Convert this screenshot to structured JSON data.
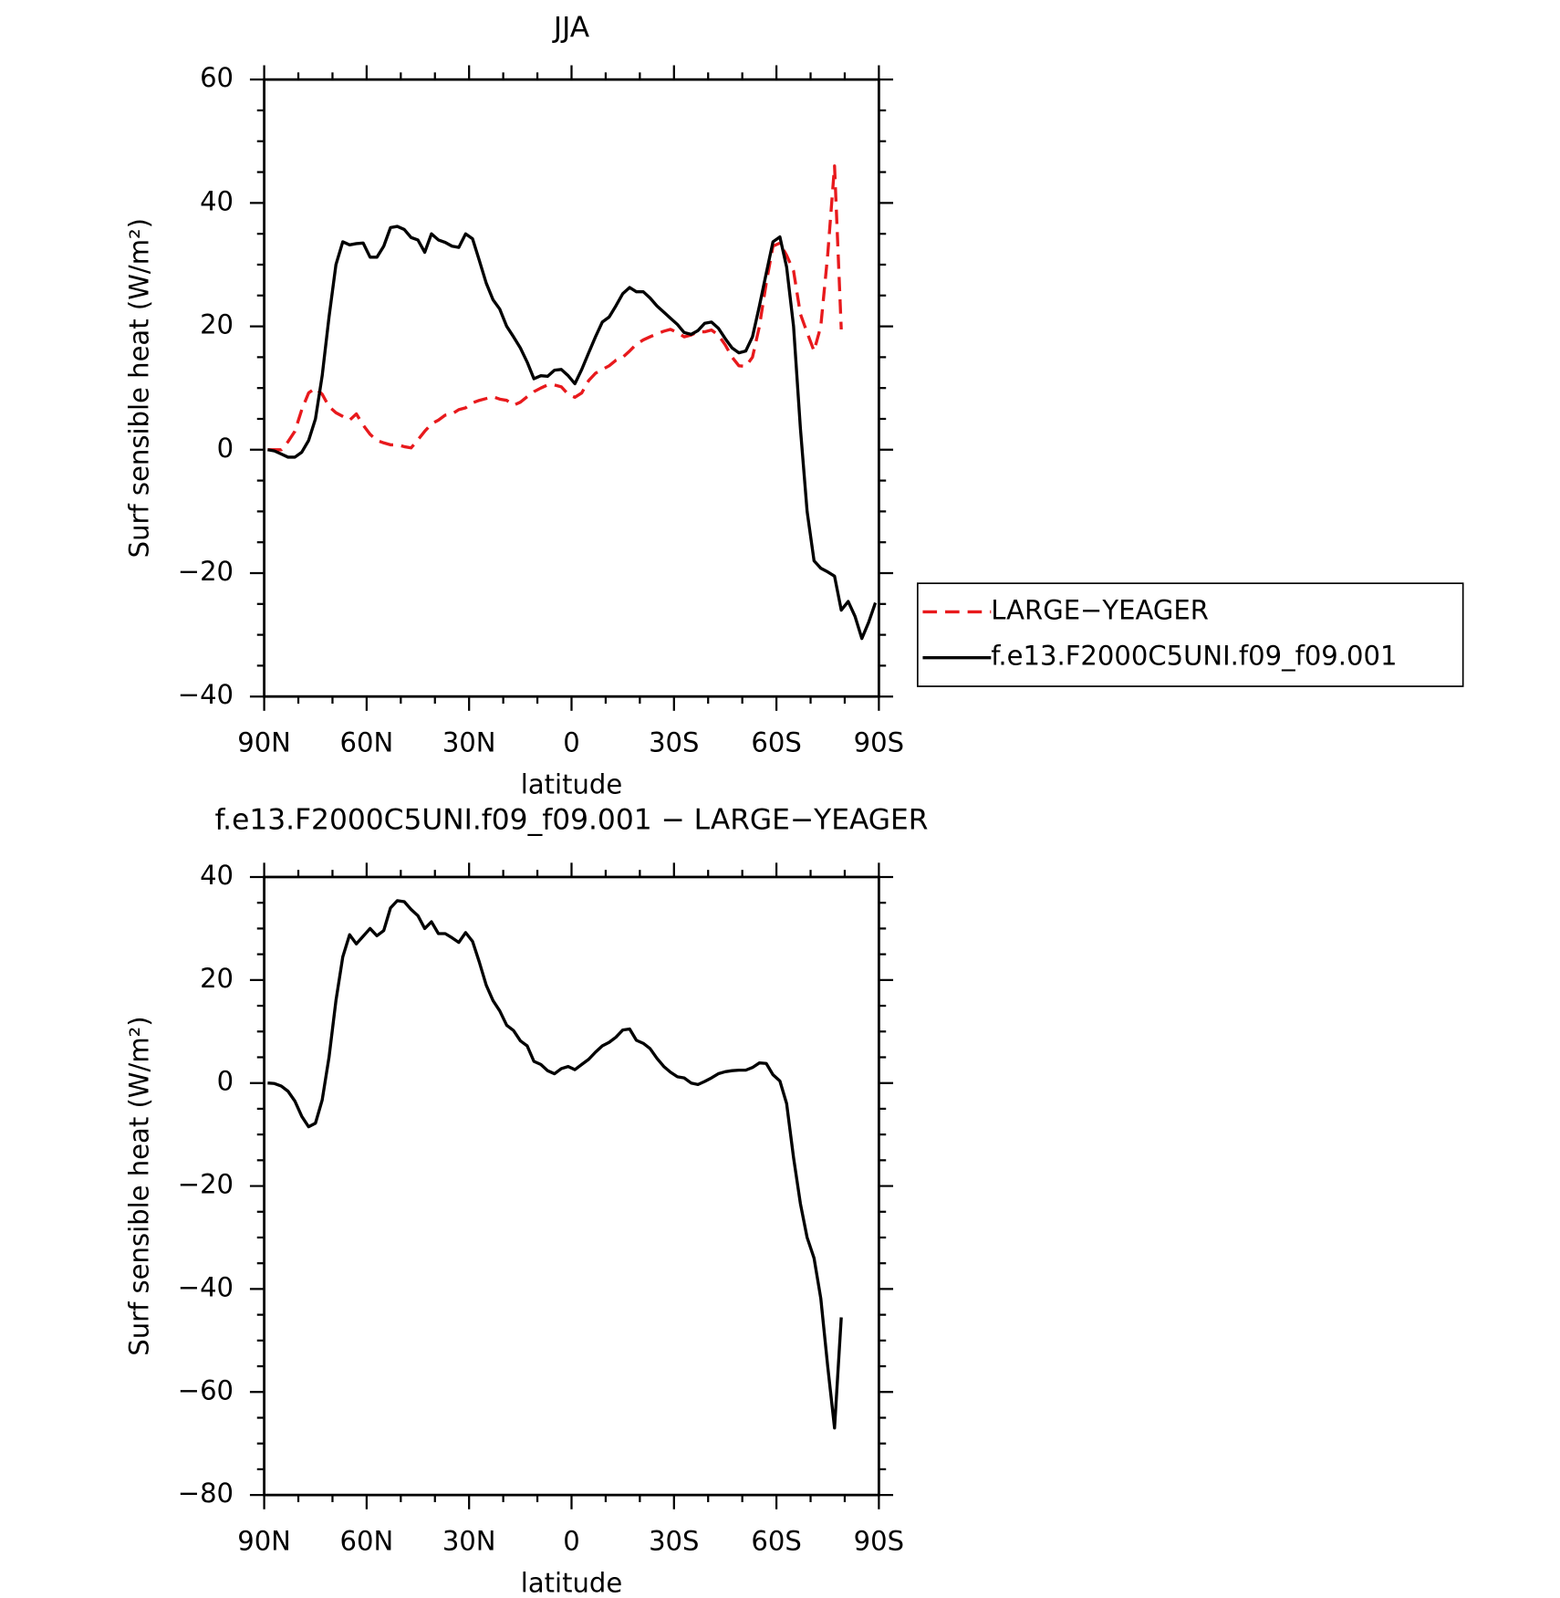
{
  "chart_data": [
    {
      "type": "line",
      "title": "JJA",
      "xlabel": "latitude",
      "ylabel": "Surf sensible heat (W/m²)",
      "legend": "right",
      "x": [
        89,
        87,
        85,
        83,
        81,
        79,
        77,
        75,
        73,
        71,
        69,
        67,
        65,
        63,
        61,
        59,
        57,
        55,
        53,
        51,
        49,
        47,
        45,
        43,
        41,
        39,
        37,
        35,
        33,
        31,
        29,
        27,
        25,
        23,
        21,
        19,
        17,
        15,
        13,
        11,
        9,
        7,
        5,
        3,
        1,
        -1,
        -3,
        -5,
        -7,
        -9,
        -11,
        -13,
        -15,
        -17,
        -19,
        -21,
        -23,
        -25,
        -27,
        -29,
        -31,
        -33,
        -35,
        -37,
        -39,
        -41,
        -43,
        -45,
        -47,
        -49,
        -51,
        -53,
        -55,
        -57,
        -59,
        -61,
        -63,
        -65,
        -67,
        -69,
        -71,
        -73,
        -75,
        -77,
        -79,
        -81,
        -83,
        -85,
        -87,
        -89
      ],
      "series": [
        {
          "name": "LARGE−YEAGER",
          "color": "#e8191c",
          "dash": true,
          "values": [
            0,
            0,
            0,
            1.3,
            3,
            6.5,
            9.2,
            10,
            9,
            7,
            6,
            5.4,
            4.8,
            5.8,
            4,
            2.5,
            1.5,
            1.1,
            0.8,
            0.8,
            0.5,
            0.3,
            1.6,
            3,
            4.2,
            4.8,
            5.6,
            5.8,
            6.5,
            6.8,
            7.6,
            8,
            8.3,
            8.6,
            8.2,
            8,
            7.2,
            7.7,
            8.6,
            9.4,
            10,
            10.5,
            10.5,
            10.2,
            9,
            8.5,
            9.2,
            11.2,
            12.4,
            13,
            13.6,
            14.5,
            15,
            16,
            17.1,
            17.8,
            18.3,
            18.8,
            19.2,
            19.5,
            19,
            18.3,
            18.6,
            19.1,
            19.1,
            19.4,
            18.6,
            17,
            15,
            13.6,
            13.5,
            15,
            20,
            27,
            33,
            33.5,
            31.5,
            29,
            22,
            19,
            16,
            20,
            31.6,
            46,
            19.5,
            null,
            null,
            null,
            null,
            null
          ]
        },
        {
          "name": "f.e13.F2000C5UNI.f09_f09.001",
          "color": "#000000",
          "dash": false,
          "values": [
            0,
            -0.2,
            -0.7,
            -1.2,
            -1.2,
            -0.4,
            1.5,
            5,
            12,
            21.5,
            30,
            33.7,
            33.2,
            33.4,
            33.5,
            31.2,
            31.2,
            33,
            36,
            36.2,
            35.7,
            34.4,
            34,
            32,
            35,
            34,
            33.6,
            33,
            32.8,
            35,
            34.2,
            30.7,
            27,
            24.3,
            22.8,
            20,
            18.3,
            16.5,
            14.2,
            11.5,
            12,
            11.9,
            12.9,
            13,
            12,
            10.7,
            13,
            15.7,
            18.3,
            20.7,
            21.5,
            23.3,
            25.3,
            26.3,
            25.6,
            25.6,
            24.6,
            23.3,
            22.3,
            21.3,
            20.3,
            19,
            18.7,
            19.3,
            20.5,
            20.7,
            19.7,
            18,
            16.5,
            15.7,
            16,
            18.3,
            23.3,
            28.6,
            33.7,
            34.5,
            29.6,
            20,
            3.5,
            -10,
            -18,
            -19.2,
            -19.8,
            -20.5,
            -26,
            -24.6,
            -27,
            -30.6,
            -28,
            -24.8
          ]
        }
      ],
      "xlim": [
        90,
        -90
      ],
      "xticks": [
        {
          "value": 90,
          "label": "90N"
        },
        {
          "value": 60,
          "label": "60N"
        },
        {
          "value": 30,
          "label": "30N"
        },
        0,
        {
          "value": -30,
          "label": "30S"
        },
        {
          "value": -60,
          "label": "60S"
        },
        {
          "value": -90,
          "label": "90S"
        }
      ],
      "xminor_ticks": [
        80,
        70,
        50,
        40,
        20,
        10,
        -10,
        -20,
        -40,
        -50,
        -70,
        -80
      ],
      "ylim": [
        -40,
        60
      ],
      "yticks": [
        60,
        40,
        20,
        0,
        {
          "value": -20,
          "label": "−20"
        },
        {
          "value": -40,
          "label": "−40"
        }
      ],
      "yminor_ticks": [
        -35,
        -30,
        -25,
        -15,
        -10,
        -5,
        5,
        10,
        15,
        25,
        30,
        35,
        45,
        50,
        55
      ]
    },
    {
      "type": "line",
      "title": "f.e13.F2000C5UNI.f09_f09.001 − LARGE−YEAGER",
      "xlabel": "latitude",
      "ylabel": "Surf sensible heat (W/m²)",
      "x": [
        89,
        87,
        85,
        83,
        81,
        79,
        77,
        75,
        73,
        71,
        69,
        67,
        65,
        63,
        61,
        59,
        57,
        55,
        53,
        51,
        49,
        47,
        45,
        43,
        41,
        39,
        37,
        35,
        33,
        31,
        29,
        27,
        25,
        23,
        21,
        19,
        17,
        15,
        13,
        11,
        9,
        7,
        5,
        3,
        1,
        -1,
        -3,
        -5,
        -7,
        -9,
        -11,
        -13,
        -15,
        -17,
        -19,
        -21,
        -23,
        -25,
        -27,
        -29,
        -31,
        -33,
        -35,
        -37,
        -39,
        -41,
        -43,
        -45,
        -47,
        -49,
        -51,
        -53,
        -55,
        -57,
        -59,
        -61,
        -63,
        -65,
        -67,
        -69,
        -71,
        -73,
        -75,
        -77,
        -79,
        -81,
        -83,
        -85,
        -87,
        -89
      ],
      "series": [
        {
          "color": "#000000",
          "dash": false,
          "values": [
            0,
            -0.1,
            -0.6,
            -1.6,
            -3.5,
            -6.5,
            -8.5,
            -7.8,
            -3.3,
            5,
            16,
            24.5,
            28.8,
            27,
            28.5,
            30,
            28.6,
            29.6,
            34,
            35.4,
            35.2,
            33.7,
            32.5,
            30,
            31.3,
            29,
            29,
            28.2,
            27.3,
            29.2,
            27.5,
            23.5,
            19,
            16,
            14,
            11.2,
            10.2,
            8.2,
            7.2,
            4.2,
            3.6,
            2.4,
            1.8,
            2.8,
            3.2,
            2.6,
            3.6,
            4.6,
            6,
            7.2,
            7.9,
            8.9,
            10.3,
            10.5,
            8.3,
            7.7,
            6.7,
            4.8,
            3.2,
            2.1,
            1.2,
            1,
            0,
            -0.3,
            0.3,
            1,
            1.8,
            2.2,
            2.4,
            2.5,
            2.5,
            3,
            3.9,
            3.8,
            1.6,
            0.4,
            -4,
            -14.5,
            -23.4,
            -30,
            -34,
            -41.8,
            -55,
            -67,
            -45.5,
            null,
            null,
            null,
            null,
            null
          ]
        }
      ],
      "xlim": [
        90,
        -90
      ],
      "xticks": [
        {
          "value": 90,
          "label": "90N"
        },
        {
          "value": 60,
          "label": "60N"
        },
        {
          "value": 30,
          "label": "30N"
        },
        0,
        {
          "value": -30,
          "label": "30S"
        },
        {
          "value": -60,
          "label": "60S"
        },
        {
          "value": -90,
          "label": "90S"
        }
      ],
      "xminor_ticks": [
        80,
        70,
        50,
        40,
        20,
        10,
        -10,
        -20,
        -40,
        -50,
        -70,
        -80
      ],
      "ylim": [
        -80,
        40
      ],
      "yticks": [
        40,
        20,
        0,
        {
          "value": -20,
          "label": "−20"
        },
        {
          "value": -40,
          "label": "−40"
        },
        {
          "value": -60,
          "label": "−60"
        },
        {
          "value": -80,
          "label": "−80"
        }
      ],
      "yminor_ticks": [
        -75,
        -70,
        -65,
        -55,
        -50,
        -45,
        -35,
        -30,
        -25,
        -15,
        -10,
        -5,
        5,
        10,
        15,
        25,
        30,
        35
      ]
    }
  ]
}
